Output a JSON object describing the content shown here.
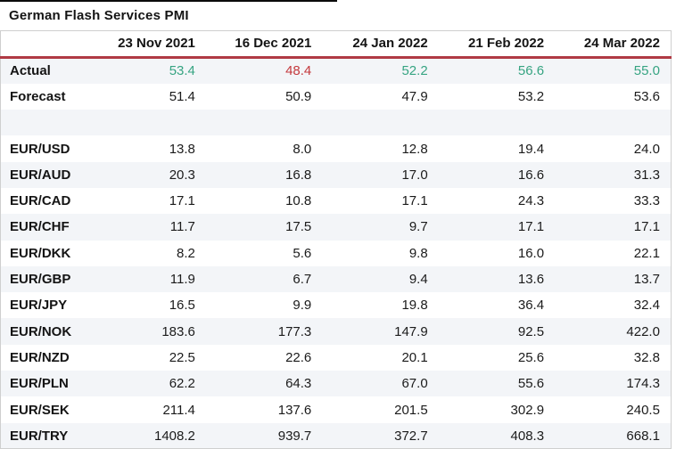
{
  "title": "German Flash Services PMI",
  "colors": {
    "positive": "#36a482",
    "negative": "#c4393d",
    "header_rule": "#b03a44",
    "row_alt": "#f3f5f8",
    "table_border": "#cfcfcf",
    "text": "#1b1b1b"
  },
  "chart_data": {
    "type": "table",
    "title": "German Flash Services PMI",
    "columns": [
      "23 Nov 2021",
      "16 Dec 2021",
      "24 Jan 2022",
      "21 Feb 2022",
      "24 Mar 2022"
    ],
    "rows": [
      {
        "label": "Actual",
        "values": [
          "53.4",
          "48.4",
          "52.2",
          "56.6",
          "55.0"
        ],
        "value_colors": [
          "positive",
          "negative",
          "positive",
          "positive",
          "positive"
        ]
      },
      {
        "label": "Forecast",
        "values": [
          "51.4",
          "50.9",
          "47.9",
          "53.2",
          "53.6"
        ]
      },
      {
        "label": "",
        "values": [
          "",
          "",
          "",
          "",
          ""
        ],
        "spacer": true
      },
      {
        "label": "EUR/USD",
        "values": [
          "13.8",
          "8.0",
          "12.8",
          "19.4",
          "24.0"
        ]
      },
      {
        "label": "EUR/AUD",
        "values": [
          "20.3",
          "16.8",
          "17.0",
          "16.6",
          "31.3"
        ]
      },
      {
        "label": "EUR/CAD",
        "values": [
          "17.1",
          "10.8",
          "17.1",
          "24.3",
          "33.3"
        ]
      },
      {
        "label": "EUR/CHF",
        "values": [
          "11.7",
          "17.5",
          "9.7",
          "17.1",
          "17.1"
        ]
      },
      {
        "label": "EUR/DKK",
        "values": [
          "8.2",
          "5.6",
          "9.8",
          "16.0",
          "22.1"
        ]
      },
      {
        "label": "EUR/GBP",
        "values": [
          "11.9",
          "6.7",
          "9.4",
          "13.6",
          "13.7"
        ]
      },
      {
        "label": "EUR/JPY",
        "values": [
          "16.5",
          "9.9",
          "19.8",
          "36.4",
          "32.4"
        ]
      },
      {
        "label": "EUR/NOK",
        "values": [
          "183.6",
          "177.3",
          "147.9",
          "92.5",
          "422.0"
        ]
      },
      {
        "label": "EUR/NZD",
        "values": [
          "22.5",
          "22.6",
          "20.1",
          "25.6",
          "32.8"
        ]
      },
      {
        "label": "EUR/PLN",
        "values": [
          "62.2",
          "64.3",
          "67.0",
          "55.6",
          "174.3"
        ]
      },
      {
        "label": "EUR/SEK",
        "values": [
          "211.4",
          "137.6",
          "201.5",
          "302.9",
          "240.5"
        ]
      },
      {
        "label": "EUR/TRY",
        "values": [
          "1408.2",
          "939.7",
          "372.7",
          "408.3",
          "668.1"
        ]
      }
    ]
  }
}
